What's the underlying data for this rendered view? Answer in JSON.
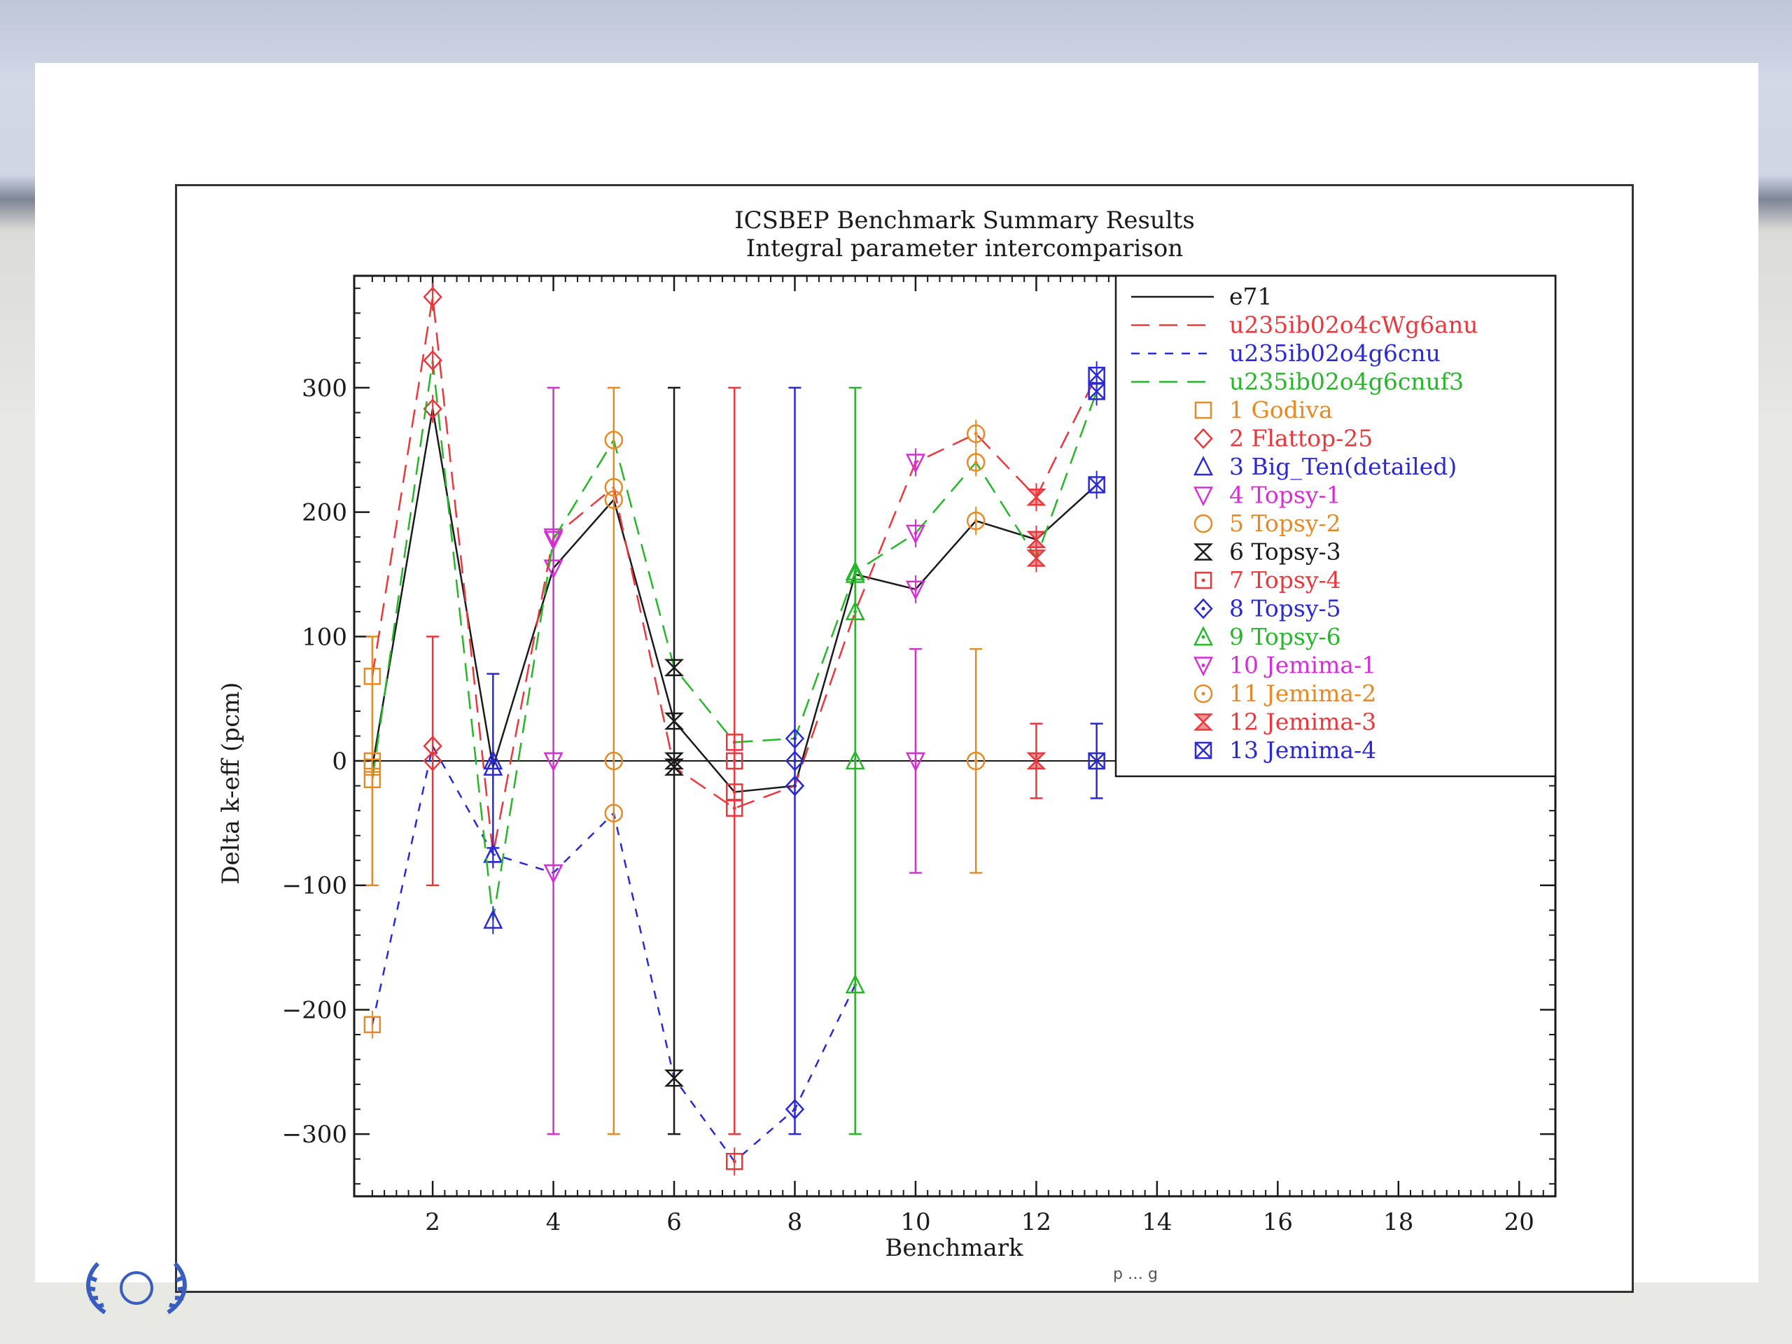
{
  "footer": {
    "logo_icon": "laurel-wreath-logo-icon",
    "text": "p  …  g"
  },
  "chart_data": {
    "type": "scatter",
    "title": "ICSBEP Benchmark Summary Results",
    "subtitle": "Integral parameter intercomparison",
    "xlabel": "Benchmark",
    "ylabel": "Delta k-eff (pcm)",
    "xlim": [
      0.7,
      20.6
    ],
    "ylim": [
      -350,
      390
    ],
    "xticks": [
      "2",
      "4",
      "6",
      "8",
      "10",
      "12",
      "14",
      "16",
      "18",
      "20"
    ],
    "yticks": [
      "300",
      "200",
      "100",
      "0",
      "−100",
      "−200",
      "−300"
    ],
    "legend_position": "top-right",
    "grid": false,
    "colors": {
      "black": "#1a1a1a",
      "red": "#e8383d",
      "blue": "#2a2ad0",
      "green": "#27b52a",
      "orange": "#e58a24",
      "magenta": "#d42fd4"
    },
    "series": [
      {
        "name": "e71",
        "color": "#1a1a1a",
        "dash": "solid",
        "x": [
          1,
          2,
          3,
          4,
          5,
          6,
          7,
          8,
          9,
          10,
          11,
          12,
          13
        ],
        "y": [
          -5,
          283,
          -5,
          155,
          210,
          32,
          -25,
          -20,
          150,
          138,
          193,
          178,
          222
        ]
      },
      {
        "name": "u235ib02o4cWg6anu",
        "color": "#e8383d",
        "dash": "long",
        "x": [
          1,
          2,
          3,
          4,
          5,
          6,
          7,
          8,
          9,
          10,
          11,
          12,
          13
        ],
        "y": [
          68,
          373,
          -75,
          180,
          220,
          -5,
          -38,
          -20,
          120,
          240,
          263,
          212,
          310
        ]
      },
      {
        "name": "u235ib02o4g6cnu",
        "color": "#2a2ad0",
        "dash": "short",
        "x": [
          1,
          2,
          3,
          4,
          5,
          6,
          7,
          8,
          9
        ],
        "y": [
          -212,
          12,
          -75,
          -90,
          -42,
          -255,
          -322,
          -280,
          -180
        ]
      },
      {
        "name": "u235ib02o4g6cnuf3",
        "color": "#27b52a",
        "dash": "long",
        "x": [
          1,
          2,
          3,
          4,
          5,
          6,
          7,
          8,
          9,
          10,
          11,
          12,
          13
        ],
        "y": [
          -15,
          322,
          -128,
          178,
          258,
          75,
          15,
          18,
          152,
          183,
          240,
          163,
          297
        ]
      }
    ],
    "benchmarks": [
      {
        "label": "1 Godiva",
        "color": "#e58a24",
        "marker": "square",
        "x": 1,
        "unc": 100
      },
      {
        "label": "2 Flattop-25",
        "color": "#e8383d",
        "marker": "diamond",
        "x": 2,
        "unc": 100
      },
      {
        "label": "3 Big_Ten(detailed)",
        "color": "#2a2ad0",
        "marker": "triangle-up",
        "x": 3,
        "unc": 70
      },
      {
        "label": "4 Topsy-1",
        "color": "#d42fd4",
        "marker": "triangle-down",
        "x": 4,
        "unc": 300
      },
      {
        "label": "5 Topsy-2",
        "color": "#e58a24",
        "marker": "circle",
        "x": 5,
        "unc": 300
      },
      {
        "label": "6 Topsy-3",
        "color": "#1a1a1a",
        "marker": "hourglass",
        "x": 6,
        "unc": 300
      },
      {
        "label": "7 Topsy-4",
        "color": "#e8383d",
        "marker": "square-dot",
        "x": 7,
        "unc": 300
      },
      {
        "label": "8 Topsy-5",
        "color": "#2a2ad0",
        "marker": "diamond-dot",
        "x": 8,
        "unc": 300
      },
      {
        "label": "9 Topsy-6",
        "color": "#27b52a",
        "marker": "triangle-dot",
        "x": 9,
        "unc": 300
      },
      {
        "label": "10 Jemima-1",
        "color": "#d42fd4",
        "marker": "triangle-down-dot",
        "x": 10,
        "unc": 90
      },
      {
        "label": "11 Jemima-2",
        "color": "#e58a24",
        "marker": "circle-dot",
        "x": 11,
        "unc": 90
      },
      {
        "label": "12 Jemima-3",
        "color": "#e8383d",
        "marker": "hourglass-filled",
        "x": 12,
        "unc": 30
      },
      {
        "label": "13 Jemima-4",
        "color": "#2a2ad0",
        "marker": "square-x",
        "x": 13,
        "unc": 30
      }
    ]
  }
}
